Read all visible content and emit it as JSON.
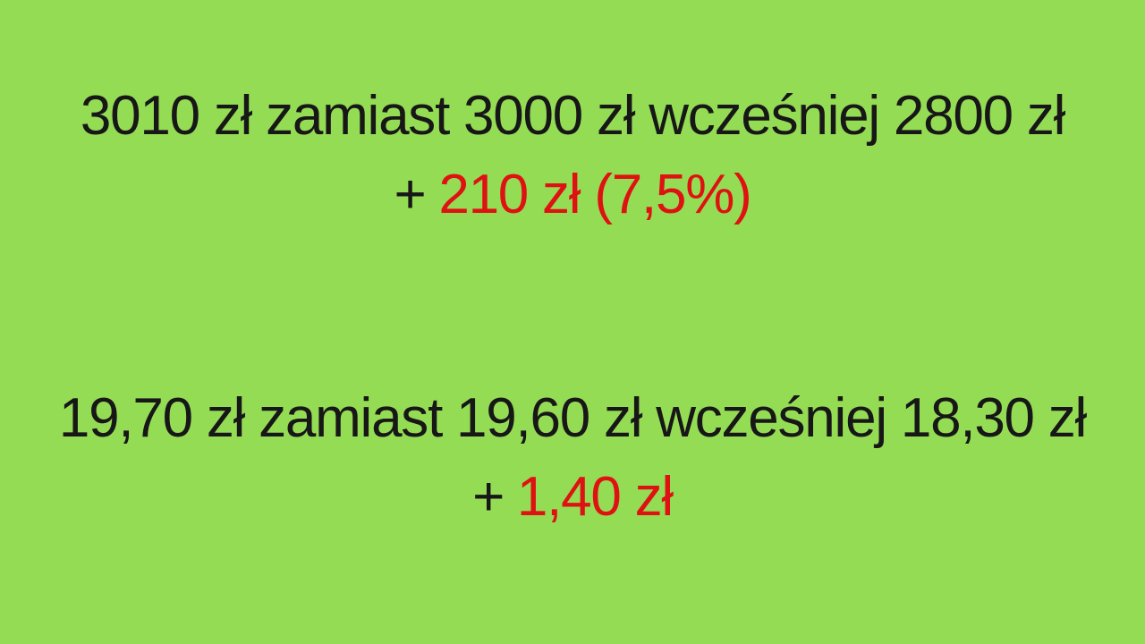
{
  "slide": {
    "background_color": "#95DC55",
    "text_color": "#171717",
    "accent_color": "#DE1212",
    "block1": {
      "comparison_line": "3010 zł zamiast 3000 zł wcześniej 2800 zł",
      "increase_prefix": "+",
      "increase_amount": "210 zł (7,5%)"
    },
    "block2": {
      "comparison_line": "19,70 zł zamiast 19,60 zł wcześniej 18,30 zł",
      "increase_prefix": "+",
      "increase_amount": "1,40 zł"
    }
  }
}
